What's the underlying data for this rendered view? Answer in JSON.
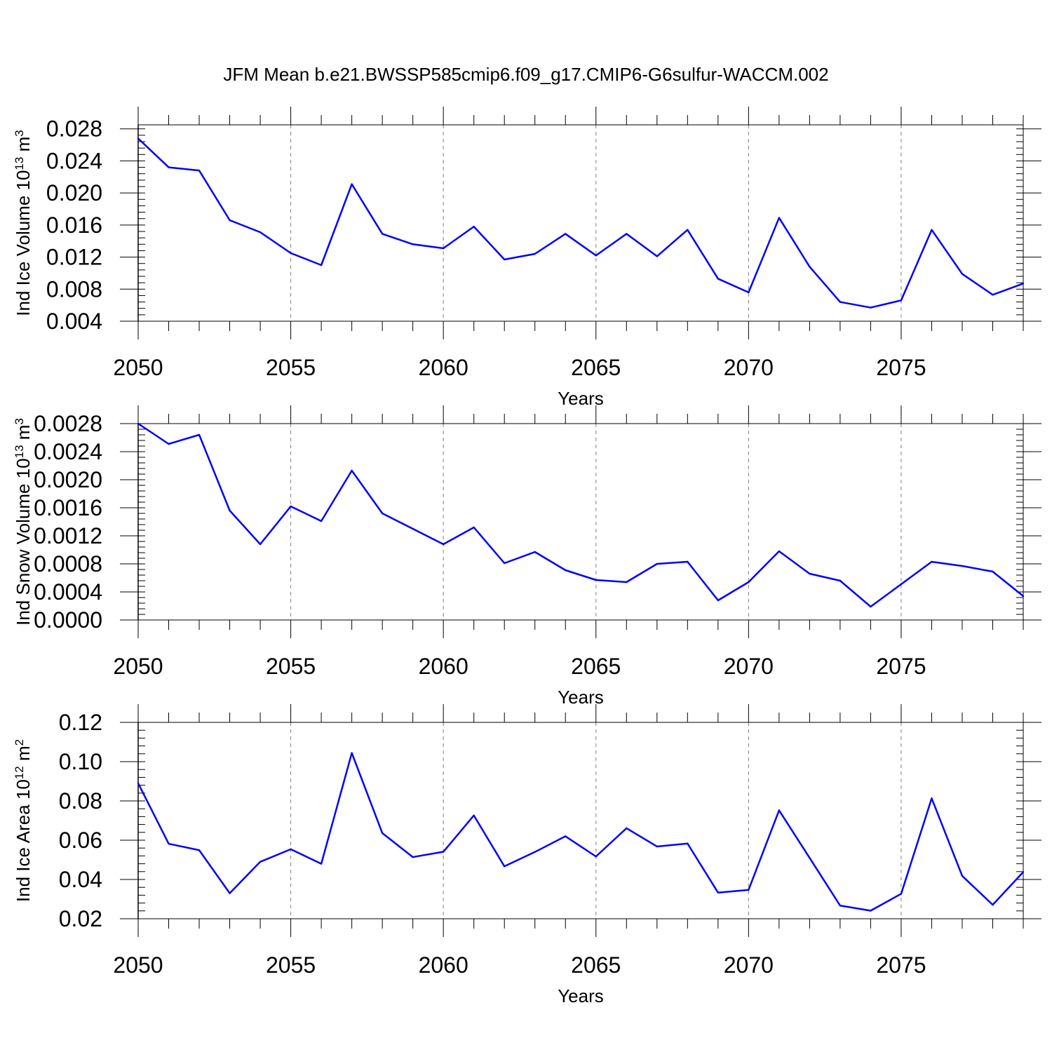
{
  "title": "JFM Mean b.e21.BWSSP585cmip6.f09_g17.CMIP6-G6sulfur-WACCM.002",
  "colors": {
    "series": "#0000ff",
    "axis": "#000000",
    "grid": "#7f7f7f"
  },
  "chart_data": [
    {
      "type": "line",
      "ylabel_text": "Ind Ice Volume 10",
      "ylabel_exp": "13",
      "ylabel_unit": "m",
      "ylabel_unit_exp": "3",
      "xlabel": "Years",
      "xlim": [
        2050,
        2079
      ],
      "ylim": [
        0.004,
        0.0285
      ],
      "yticks": [
        0.004,
        0.008,
        0.012,
        0.016,
        0.02,
        0.024,
        0.028
      ],
      "ytick_labels": [
        "0.004",
        "0.008",
        "0.012",
        "0.016",
        "0.020",
        "0.024",
        "0.028"
      ],
      "xticks": [
        2050,
        2055,
        2060,
        2065,
        2070,
        2075
      ],
      "xtick_labels": [
        "2050",
        "2055",
        "2060",
        "2065",
        "2070",
        "2075"
      ],
      "x": [
        2050,
        2051,
        2052,
        2053,
        2054,
        2055,
        2056,
        2057,
        2058,
        2059,
        2060,
        2061,
        2062,
        2063,
        2064,
        2065,
        2066,
        2067,
        2068,
        2069,
        2070,
        2071,
        2072,
        2073,
        2074,
        2075,
        2076,
        2077,
        2078,
        2079
      ],
      "values": [
        0.0268,
        0.0232,
        0.0228,
        0.0166,
        0.0151,
        0.0125,
        0.011,
        0.0211,
        0.0149,
        0.0136,
        0.0131,
        0.0158,
        0.0117,
        0.0124,
        0.0149,
        0.0122,
        0.0149,
        0.0121,
        0.0154,
        0.0093,
        0.0076,
        0.0169,
        0.0108,
        0.0064,
        0.0057,
        0.0066,
        0.0154,
        0.0099,
        0.0073,
        0.0087
      ]
    },
    {
      "type": "line",
      "ylabel_text": "Ind Snow Volume 10",
      "ylabel_exp": "13",
      "ylabel_unit": "m",
      "ylabel_unit_exp": "3",
      "xlabel": "Years",
      "xlim": [
        2050,
        2079
      ],
      "ylim": [
        0.0,
        0.0028
      ],
      "yticks": [
        0.0,
        0.0004,
        0.0008,
        0.0012,
        0.0016,
        0.002,
        0.0024,
        0.0028
      ],
      "ytick_labels": [
        "0.0000",
        "0.0004",
        "0.0008",
        "0.0012",
        "0.0016",
        "0.0020",
        "0.0024",
        "0.0028"
      ],
      "xticks": [
        2050,
        2055,
        2060,
        2065,
        2070,
        2075
      ],
      "xtick_labels": [
        "2050",
        "2055",
        "2060",
        "2065",
        "2070",
        "2075"
      ],
      "x": [
        2050,
        2051,
        2052,
        2053,
        2054,
        2055,
        2056,
        2057,
        2058,
        2059,
        2060,
        2061,
        2062,
        2063,
        2064,
        2065,
        2066,
        2067,
        2068,
        2069,
        2070,
        2071,
        2072,
        2073,
        2074,
        2075,
        2076,
        2077,
        2078,
        2079
      ],
      "values": [
        0.0028,
        0.00251,
        0.00264,
        0.00156,
        0.00108,
        0.00162,
        0.00141,
        0.00213,
        0.00152,
        0.0013,
        0.00108,
        0.00132,
        0.00081,
        0.00097,
        0.00071,
        0.00057,
        0.00054,
        0.0008,
        0.00083,
        0.00028,
        0.00054,
        0.00098,
        0.00066,
        0.00056,
        0.00019,
        0.00051,
        0.00083,
        0.00077,
        0.00069,
        0.00034
      ]
    },
    {
      "type": "line",
      "ylabel_text": "Ind Ice Area 10",
      "ylabel_exp": "12",
      "ylabel_unit": "m",
      "ylabel_unit_exp": "2",
      "xlabel": "Years",
      "xlim": [
        2050,
        2079
      ],
      "ylim": [
        0.02,
        0.12
      ],
      "yticks": [
        0.02,
        0.04,
        0.06,
        0.08,
        0.1,
        0.12
      ],
      "ytick_labels": [
        "0.02",
        "0.04",
        "0.06",
        "0.08",
        "0.10",
        "0.12"
      ],
      "xticks": [
        2050,
        2055,
        2060,
        2065,
        2070,
        2075
      ],
      "xtick_labels": [
        "2050",
        "2055",
        "2060",
        "2065",
        "2070",
        "2075"
      ],
      "x": [
        2050,
        2051,
        2052,
        2053,
        2054,
        2055,
        2056,
        2057,
        2058,
        2059,
        2060,
        2061,
        2062,
        2063,
        2064,
        2065,
        2066,
        2067,
        2068,
        2069,
        2070,
        2071,
        2072,
        2073,
        2074,
        2075,
        2076,
        2077,
        2078,
        2079
      ],
      "values": [
        0.089,
        0.0582,
        0.0549,
        0.033,
        0.049,
        0.0554,
        0.048,
        0.1044,
        0.0636,
        0.0514,
        0.0541,
        0.0726,
        0.0467,
        0.054,
        0.062,
        0.0517,
        0.0661,
        0.0568,
        0.0583,
        0.0333,
        0.0347,
        0.0752,
        0.051,
        0.0267,
        0.0241,
        0.0327,
        0.0813,
        0.0418,
        0.0271,
        0.0438
      ]
    }
  ]
}
